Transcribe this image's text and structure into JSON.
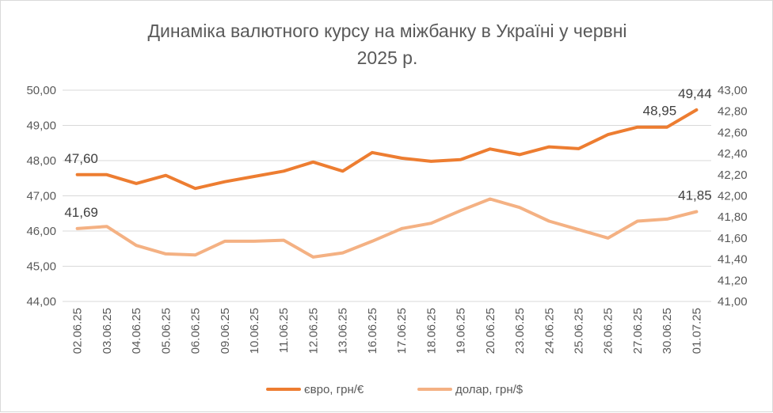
{
  "chart_data": {
    "type": "line",
    "title_line1": "Динаміка валютного курсу на міжбанку в Україні у червні",
    "title_line2": "2025 р.",
    "categories": [
      "02.06.25",
      "03.06.25",
      "04.06.25",
      "05.06.25",
      "06.06.25",
      "09.06.25",
      "10.06.25",
      "11.06.25",
      "12.06.25",
      "13.06.25",
      "16.06.25",
      "17.06.25",
      "18.06.25",
      "19.06.25",
      "20.06.25",
      "23.06.25",
      "24.06.25",
      "25.06.25",
      "26.06.25",
      "27.06.25",
      "30.06.25",
      "01.07.25"
    ],
    "y_left": {
      "min": 44,
      "max": 50,
      "step": 1,
      "ticks": [
        "44,00",
        "45,00",
        "46,00",
        "47,00",
        "48,00",
        "49,00",
        "50,00"
      ]
    },
    "y_right": {
      "min": 41,
      "max": 43,
      "step": 0.2,
      "ticks": [
        "41,00",
        "41,20",
        "41,40",
        "41,60",
        "41,80",
        "42,00",
        "42,20",
        "42,40",
        "42,60",
        "42,80",
        "43,00"
      ]
    },
    "grid": true,
    "legend_position": "bottom",
    "series": [
      {
        "name": "євро, грн/€",
        "axis": "left",
        "color": "#ed7d31",
        "values": [
          47.6,
          47.6,
          47.35,
          47.58,
          47.21,
          47.4,
          47.55,
          47.7,
          47.96,
          47.7,
          48.23,
          48.07,
          47.98,
          48.03,
          48.33,
          48.17,
          48.39,
          48.34,
          48.74,
          48.95,
          48.95,
          49.44
        ],
        "labels": [
          {
            "index": 0,
            "text": "47,60"
          },
          {
            "index": 20,
            "text": "48,95"
          },
          {
            "index": 21,
            "text": "49,44"
          }
        ]
      },
      {
        "name": "долар, грн/$",
        "axis": "right",
        "color": "#f4b183",
        "values": [
          41.69,
          41.71,
          41.53,
          41.45,
          41.44,
          41.57,
          41.57,
          41.58,
          41.42,
          41.46,
          41.57,
          41.69,
          41.74,
          41.86,
          41.97,
          41.89,
          41.76,
          41.68,
          41.6,
          41.76,
          41.78,
          41.85
        ],
        "labels": [
          {
            "index": 0,
            "text": "41,69"
          },
          {
            "index": 21,
            "text": "41,85"
          }
        ]
      }
    ]
  }
}
